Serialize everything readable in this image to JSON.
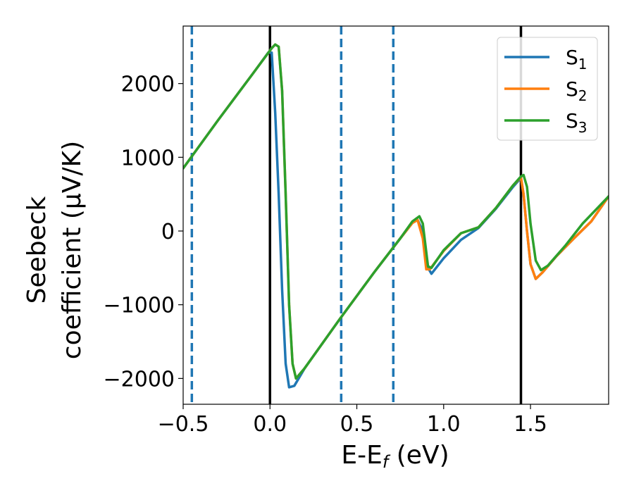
{
  "chart_data": {
    "type": "line",
    "xlabel": "E-E",
    "xlabel_sub": "f",
    "xlabel_unit": " (eV)",
    "ylabel_line1": "Seebeck",
    "ylabel_line2": "coefficient  (μV/K)",
    "xlim": [
      -0.5,
      1.95
    ],
    "ylim": [
      -2350,
      2780
    ],
    "xticks": [
      -0.5,
      0.0,
      0.5,
      1.0,
      1.5
    ],
    "xtick_labels": [
      "−0.5",
      "0.0",
      "0.5",
      "1.0",
      "1.5"
    ],
    "yticks": [
      -2000,
      -1000,
      0,
      1000,
      2000
    ],
    "ytick_labels": [
      "−2000",
      "−1000",
      "0",
      "1000",
      "2000"
    ],
    "grid": false,
    "legend_position": "top-right",
    "vertical_lines": [
      {
        "x": -0.45,
        "style": "dashed",
        "color": "#1f77b4"
      },
      {
        "x": 0.0,
        "style": "solid",
        "color": "#000000"
      },
      {
        "x": 0.41,
        "style": "dashed",
        "color": "#1f77b4"
      },
      {
        "x": 0.71,
        "style": "dashed",
        "color": "#1f77b4"
      },
      {
        "x": 1.445,
        "style": "solid",
        "color": "#000000"
      }
    ],
    "series": [
      {
        "name": "S",
        "sub": "1",
        "color": "#1f77b4",
        "points": [
          [
            -0.5,
            850
          ],
          [
            -0.3,
            1500
          ],
          [
            -0.1,
            2130
          ],
          [
            -0.01,
            2420
          ],
          [
            0.01,
            2420
          ],
          [
            0.03,
            1600
          ],
          [
            0.05,
            500
          ],
          [
            0.07,
            -800
          ],
          [
            0.09,
            -1800
          ],
          [
            0.11,
            -2120
          ],
          [
            0.14,
            -2100
          ],
          [
            0.2,
            -1860
          ],
          [
            0.4,
            -1200
          ],
          [
            0.6,
            -560
          ],
          [
            0.75,
            -100
          ],
          [
            0.82,
            110
          ],
          [
            0.85,
            150
          ],
          [
            0.88,
            0
          ],
          [
            0.91,
            -500
          ],
          [
            0.93,
            -580
          ],
          [
            1.0,
            -370
          ],
          [
            1.1,
            -120
          ],
          [
            1.2,
            40
          ],
          [
            1.3,
            300
          ],
          [
            1.4,
            600
          ],
          [
            1.445,
            720
          ],
          [
            1.46,
            500
          ],
          [
            1.48,
            0
          ],
          [
            1.5,
            -450
          ],
          [
            1.53,
            -650
          ],
          [
            1.57,
            -560
          ],
          [
            1.65,
            -340
          ],
          [
            1.75,
            -100
          ],
          [
            1.85,
            130
          ],
          [
            1.95,
            470
          ]
        ]
      },
      {
        "name": "S",
        "sub": "2",
        "color": "#ff7f0e",
        "points": [
          [
            -0.5,
            850
          ],
          [
            -0.3,
            1500
          ],
          [
            -0.1,
            2130
          ],
          [
            0.01,
            2480
          ],
          [
            0.03,
            2530
          ],
          [
            0.05,
            2500
          ],
          [
            0.07,
            1900
          ],
          [
            0.09,
            500
          ],
          [
            0.11,
            -1000
          ],
          [
            0.13,
            -1800
          ],
          [
            0.15,
            -2000
          ],
          [
            0.2,
            -1860
          ],
          [
            0.4,
            -1200
          ],
          [
            0.6,
            -560
          ],
          [
            0.75,
            -100
          ],
          [
            0.82,
            110
          ],
          [
            0.85,
            150
          ],
          [
            0.88,
            -100
          ],
          [
            0.9,
            -520
          ],
          [
            0.92,
            -520
          ],
          [
            1.0,
            -270
          ],
          [
            1.1,
            -30
          ],
          [
            1.2,
            50
          ],
          [
            1.3,
            310
          ],
          [
            1.4,
            620
          ],
          [
            1.445,
            730
          ],
          [
            1.46,
            500
          ],
          [
            1.48,
            0
          ],
          [
            1.5,
            -450
          ],
          [
            1.53,
            -650
          ],
          [
            1.57,
            -560
          ],
          [
            1.65,
            -340
          ],
          [
            1.75,
            -100
          ],
          [
            1.85,
            130
          ],
          [
            1.95,
            470
          ]
        ]
      },
      {
        "name": "S",
        "sub": "3",
        "color": "#2ca02c",
        "points": [
          [
            -0.5,
            850
          ],
          [
            -0.3,
            1500
          ],
          [
            -0.1,
            2130
          ],
          [
            0.01,
            2480
          ],
          [
            0.03,
            2530
          ],
          [
            0.05,
            2500
          ],
          [
            0.07,
            1900
          ],
          [
            0.09,
            500
          ],
          [
            0.11,
            -1000
          ],
          [
            0.13,
            -1800
          ],
          [
            0.15,
            -2000
          ],
          [
            0.2,
            -1860
          ],
          [
            0.4,
            -1200
          ],
          [
            0.6,
            -560
          ],
          [
            0.75,
            -100
          ],
          [
            0.82,
            130
          ],
          [
            0.86,
            200
          ],
          [
            0.88,
            100
          ],
          [
            0.91,
            -480
          ],
          [
            0.93,
            -500
          ],
          [
            1.0,
            -260
          ],
          [
            1.1,
            -30
          ],
          [
            1.2,
            50
          ],
          [
            1.3,
            310
          ],
          [
            1.4,
            620
          ],
          [
            1.445,
            740
          ],
          [
            1.46,
            760
          ],
          [
            1.48,
            600
          ],
          [
            1.5,
            100
          ],
          [
            1.53,
            -400
          ],
          [
            1.56,
            -530
          ],
          [
            1.6,
            -470
          ],
          [
            1.7,
            -200
          ],
          [
            1.8,
            100
          ],
          [
            1.95,
            470
          ]
        ]
      }
    ]
  }
}
